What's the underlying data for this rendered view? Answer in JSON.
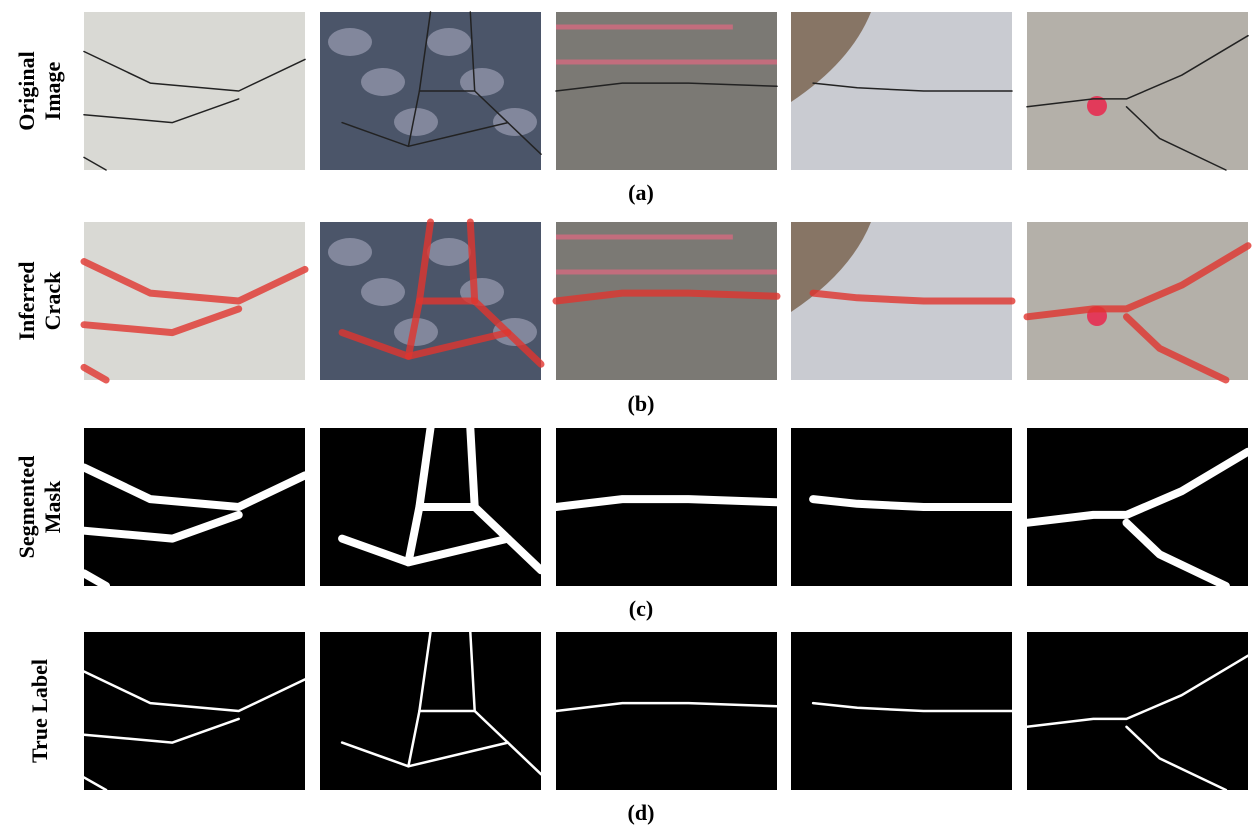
{
  "rows": [
    {
      "label": [
        "Original",
        "Image"
      ],
      "caption": "(a)"
    },
    {
      "label": [
        "Inferred",
        "Crack"
      ],
      "caption": "(b)"
    },
    {
      "label": [
        "Segmented",
        "Mask"
      ],
      "caption": "(c)"
    },
    {
      "label": [
        "True Label"
      ],
      "caption": "(d)"
    }
  ]
}
